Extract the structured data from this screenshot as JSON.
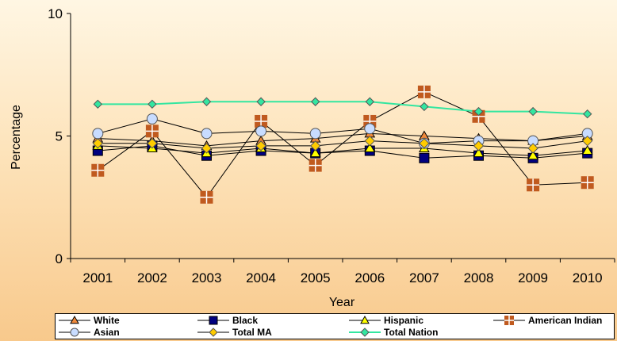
{
  "chart_data": {
    "type": "line",
    "title": "",
    "xlabel": "Year",
    "ylabel": "Percentage",
    "x": [
      "2001",
      "2002",
      "2003",
      "2004",
      "2005",
      "2006",
      "2007",
      "2008",
      "2009",
      "2010"
    ],
    "ylim": [
      0,
      10
    ],
    "yticks": [
      "0",
      "5",
      "10"
    ],
    "grid": false,
    "legend_position": "bottom",
    "series": [
      {
        "name": "White",
        "color": "#f08a3c",
        "marker": "triangle",
        "values": [
          4.9,
          4.8,
          4.6,
          4.8,
          4.9,
          5.1,
          5.0,
          4.9,
          4.8,
          5.0
        ]
      },
      {
        "name": "Black",
        "color": "#000080",
        "marker": "square",
        "values": [
          4.4,
          4.6,
          4.2,
          4.4,
          4.3,
          4.4,
          4.1,
          4.2,
          4.1,
          4.3
        ]
      },
      {
        "name": "Hispanic",
        "color": "#ffff00",
        "marker": "triangle",
        "values": [
          4.6,
          4.5,
          4.3,
          4.5,
          4.3,
          4.5,
          4.5,
          4.3,
          4.2,
          4.4
        ]
      },
      {
        "name": "American Indian",
        "color": "#c05a1f",
        "marker": "cross-square",
        "values": [
          3.6,
          5.2,
          2.5,
          5.6,
          3.8,
          5.6,
          6.8,
          5.8,
          3.0,
          3.1
        ]
      },
      {
        "name": "Asian",
        "color": "#c8dcff",
        "marker": "circle",
        "values": [
          5.1,
          5.7,
          5.1,
          5.2,
          5.1,
          5.3,
          4.7,
          4.8,
          4.8,
          5.1
        ]
      },
      {
        "name": "Total MA",
        "color": "#ffcc00",
        "marker": "diamond",
        "values": [
          4.7,
          4.7,
          4.5,
          4.6,
          4.6,
          4.8,
          4.7,
          4.6,
          4.5,
          4.8
        ]
      },
      {
        "name": "Total Nation",
        "color": "#33e6a0",
        "marker": "diamond",
        "values": [
          6.3,
          6.3,
          6.4,
          6.4,
          6.4,
          6.4,
          6.2,
          6.0,
          6.0,
          5.9
        ]
      }
    ]
  }
}
